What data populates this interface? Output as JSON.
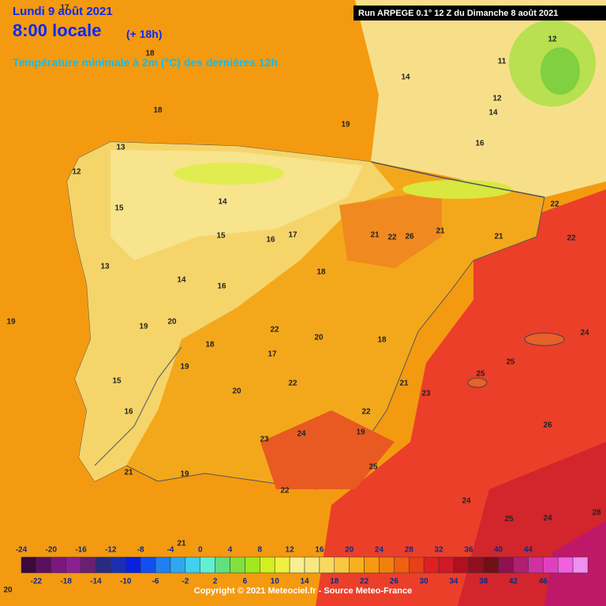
{
  "header": {
    "date": "Lundi 9 août 2021",
    "time": "8:00 locale",
    "lead": "(+ 18h)",
    "title": "Température minimale à 2m (°C) des dernières 12h",
    "run": "Run ARPEGE 0.1° 12 Z du Dimanche 8 août 2021"
  },
  "map": {
    "labels": [
      17,
      18,
      18,
      19,
      16,
      14,
      12,
      11,
      12,
      14,
      22,
      22,
      21,
      19,
      13,
      12,
      15,
      14,
      15,
      16,
      17,
      13,
      14,
      16,
      18,
      21,
      22,
      26,
      21,
      19,
      20,
      18,
      22,
      20,
      18,
      17,
      15,
      16,
      19,
      20,
      22,
      21,
      23,
      25,
      25,
      24,
      26,
      22,
      19,
      25,
      24,
      23,
      21,
      19,
      22,
      24,
      25,
      24,
      28,
      20,
      21
    ]
  },
  "colorbar": {
    "top_labels": [
      -24,
      -20,
      -16,
      -12,
      -8,
      -4,
      0,
      4,
      8,
      12,
      16,
      20,
      24,
      28,
      32,
      36,
      40,
      44
    ],
    "bottom_labels": [
      -22,
      -18,
      -14,
      -10,
      -6,
      -2,
      2,
      6,
      10,
      14,
      18,
      22,
      26,
      30,
      34,
      38,
      42,
      46
    ],
    "colors": [
      "#3a0a3a",
      "#5a1060",
      "#7a1880",
      "#8a2090",
      "#6a2070",
      "#2a2a80",
      "#1a30b0",
      "#0a20e0",
      "#1050f0",
      "#2080f0",
      "#30a8f0",
      "#40d0f0",
      "#60f0d0",
      "#60e080",
      "#80e040",
      "#a0e820",
      "#d0f020",
      "#f0f040",
      "#f8f090",
      "#f8e880",
      "#f8d860",
      "#f8c840",
      "#f8b020",
      "#f89a10",
      "#f08010",
      "#f06010",
      "#e84018",
      "#e02020",
      "#d01828",
      "#b01020",
      "#901020",
      "#701018",
      "#901050",
      "#b02070",
      "#d030a0",
      "#e040c0",
      "#f060e0",
      "#f090f0"
    ]
  },
  "footer": {
    "copyright": "Copyright © 2021 Meteociel.fr - Source Meteo-France"
  }
}
